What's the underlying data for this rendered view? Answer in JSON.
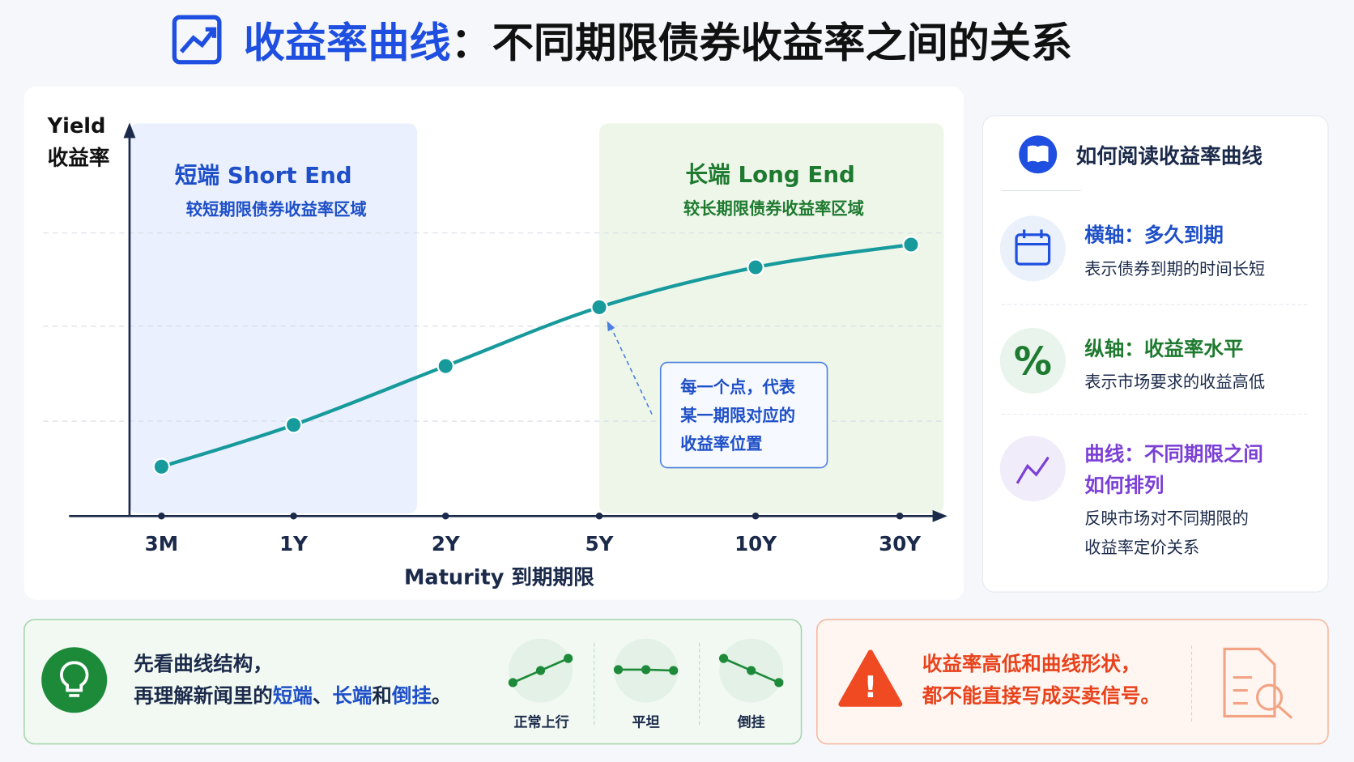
{
  "header": {
    "title_highlight": "收益率曲线",
    "title_rest": "：不同期限债券收益率之间的关系"
  },
  "chart_data": {
    "type": "line",
    "y_label": "Yield",
    "y_label_zh": "收益率",
    "x_label": "Maturity 到期期限",
    "categories": [
      "3M",
      "1Y",
      "2Y",
      "5Y",
      "10Y",
      "30Y"
    ],
    "values": [
      13,
      24,
      39.5,
      55,
      65.5,
      71.5
    ],
    "color": "#179a9c",
    "ylim": [
      0,
      100
    ],
    "regions": [
      {
        "title": "短端 Short End",
        "subtitle": "较短期限债券收益率区域"
      },
      {
        "title": "长端 Long End",
        "subtitle": "较长期限债券收益率区域"
      }
    ],
    "annotation": [
      "每一个点，代表",
      "某一期限对应的",
      "收益率位置"
    ]
  },
  "guide": {
    "title": "如何阅读收益率曲线",
    "items": [
      {
        "title": [
          "横轴：多久到期"
        ],
        "text": [
          "表示债券到期的时间长短"
        ]
      },
      {
        "title": [
          "纵轴：收益率水平"
        ],
        "text": [
          "表示市场要求的收益高低"
        ]
      },
      {
        "title": [
          "曲线：不同期限之间",
          "如何排列"
        ],
        "text": [
          "反映市场对不同期限的",
          "收益率定价关系"
        ]
      }
    ]
  },
  "tip": {
    "line1": "先看曲线结构，",
    "line2": [
      "再理解新闻里的",
      "短端",
      "、",
      "长端",
      "和",
      "倒挂",
      "。"
    ],
    "shapes": [
      "正常上行",
      "平坦",
      "倒挂"
    ]
  },
  "warning": {
    "lines": [
      "收益率高低和曲线形状，",
      "都不能直接写成买卖信号。"
    ]
  }
}
